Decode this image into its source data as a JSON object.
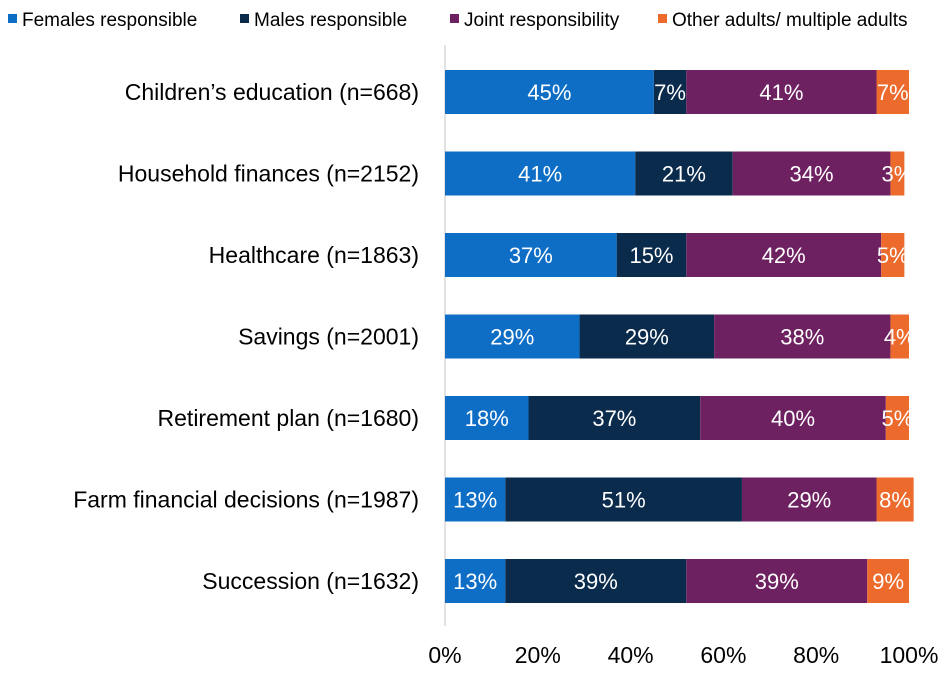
{
  "chart_data": {
    "type": "bar",
    "orientation": "horizontal",
    "stacked": "percent",
    "title": "",
    "xlabel": "",
    "ylabel": "",
    "xlim": [
      0,
      100
    ],
    "grid": false,
    "legend_position": "top",
    "categories": [
      "Children’s education (n=668)",
      "Household finances (n=2152)",
      "Healthcare (n=1863)",
      "Savings (n=2001)",
      "Retirement plan (n=1680)",
      "Farm financial decisions (n=1987)",
      "Succession (n=1632)"
    ],
    "series": [
      {
        "name": "Females responsible",
        "color": "#0e6ec6",
        "values": [
          45,
          41,
          37,
          29,
          18,
          13,
          13
        ],
        "labels": [
          "45%",
          "41%",
          "37%",
          "29%",
          "18%",
          "13%",
          "13%"
        ]
      },
      {
        "name": "Males responsible",
        "color": "#0b2b4d",
        "values": [
          7,
          21,
          15,
          29,
          37,
          51,
          39
        ],
        "labels": [
          "7%",
          "21%",
          "15%",
          "29%",
          "37%",
          "51%",
          "39%"
        ]
      },
      {
        "name": "Joint responsibility",
        "color": "#6e2161",
        "values": [
          41,
          34,
          42,
          38,
          40,
          29,
          39
        ],
        "labels": [
          "41%",
          "34%",
          "42%",
          "38%",
          "40%",
          "29%",
          "39%"
        ]
      },
      {
        "name": "Other adults/ multiple adults",
        "color": "#ec6a2c",
        "values": [
          7,
          3,
          5,
          4,
          5,
          8,
          9
        ],
        "labels": [
          "7%",
          "3%",
          "5%",
          "4%",
          "5%",
          "8%",
          "9%"
        ]
      }
    ],
    "x_ticks": [
      0,
      20,
      40,
      60,
      80,
      100
    ],
    "x_tick_labels": [
      "0%",
      "20%",
      "40%",
      "60%",
      "80%",
      "100%"
    ]
  }
}
